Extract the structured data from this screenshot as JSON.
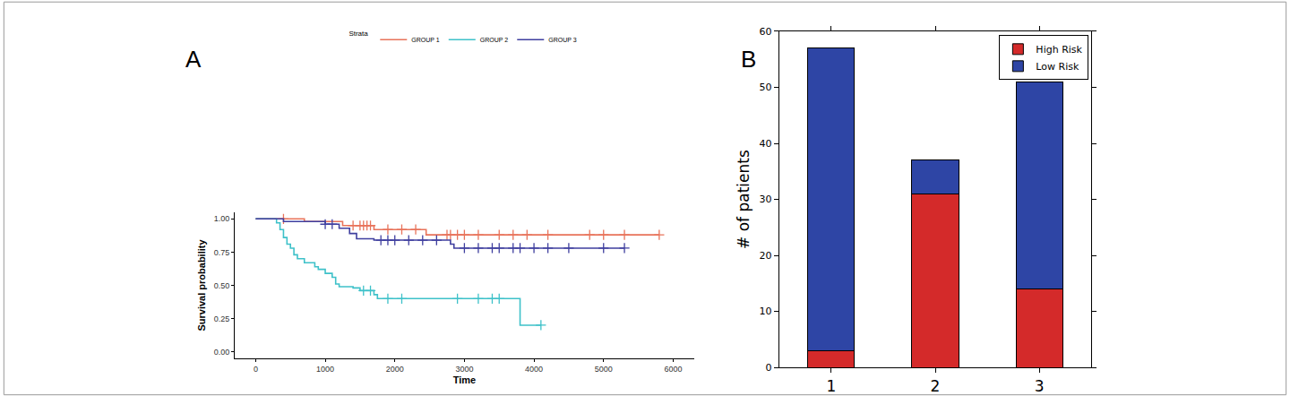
{
  "chart_data": [
    {
      "type": "line",
      "panel": "A",
      "x_label": "Time",
      "y_label": "Survival probability",
      "legend_title": "Strata",
      "legend": "top",
      "line_style": "step",
      "xlim": [
        -300,
        6300
      ],
      "xticks": [
        0,
        1000,
        2000,
        3000,
        4000,
        5000,
        6000
      ],
      "ylim": [
        -0.05,
        1.05
      ],
      "yticks": [
        {
          "value": 0,
          "label": "0.00"
        },
        {
          "value": 0.25,
          "label": "0.25"
        },
        {
          "value": 0.5,
          "label": "0.50"
        },
        {
          "value": 0.75,
          "label": "0.75"
        },
        {
          "value": 1,
          "label": "1.00"
        }
      ],
      "series": [
        {
          "name": "GROUP 1",
          "color": "#e8735a",
          "marker": "cross",
          "x": [
            0,
            700,
            1250,
            1700,
            2450,
            5800
          ],
          "values": [
            1,
            0.98,
            0.95,
            0.92,
            0.88,
            0.88
          ],
          "censored_x": [
            400,
            1400,
            1500,
            1550,
            1600,
            1650,
            1900,
            2100,
            2300,
            2750,
            2800,
            2900,
            3000,
            3200,
            3500,
            3700,
            3900,
            4200,
            4800,
            5000,
            5300,
            5800
          ],
          "censored_y": [
            1,
            0.95,
            0.95,
            0.95,
            0.95,
            0.95,
            0.92,
            0.92,
            0.92,
            0.88,
            0.88,
            0.88,
            0.88,
            0.88,
            0.88,
            0.88,
            0.88,
            0.88,
            0.88,
            0.88,
            0.88,
            0.88
          ]
        },
        {
          "name": "GROUP 2",
          "color": "#3ec1c9",
          "marker": "cross",
          "x": [
            0,
            300,
            350,
            400,
            450,
            500,
            550,
            600,
            700,
            850,
            900,
            1000,
            1100,
            1150,
            1200,
            1400,
            1500,
            1700,
            1750,
            3800,
            4100
          ],
          "values": [
            1,
            0.97,
            0.92,
            0.86,
            0.81,
            0.78,
            0.73,
            0.7,
            0.67,
            0.64,
            0.62,
            0.59,
            0.56,
            0.51,
            0.49,
            0.48,
            0.46,
            0.43,
            0.4,
            0.2,
            0.2
          ],
          "censored_x": [
            1550,
            1650,
            1900,
            2100,
            2900,
            3200,
            3400,
            3500,
            4100
          ],
          "censored_y": [
            0.46,
            0.46,
            0.4,
            0.4,
            0.4,
            0.4,
            0.4,
            0.4,
            0.2
          ]
        },
        {
          "name": "GROUP 3",
          "color": "#3f3f9f",
          "marker": "cross",
          "x": [
            0,
            400,
            1000,
            1200,
            1350,
            1450,
            1700,
            2800,
            2850,
            5300
          ],
          "values": [
            1,
            0.98,
            0.96,
            0.93,
            0.89,
            0.85,
            0.84,
            0.81,
            0.78,
            0.78
          ],
          "censored_x": [
            1000,
            1100,
            1800,
            1900,
            2000,
            2200,
            2400,
            2600,
            3000,
            3200,
            3400,
            3500,
            3700,
            3800,
            4000,
            4200,
            4500,
            5000,
            5300
          ],
          "censored_y": [
            0.96,
            0.96,
            0.84,
            0.84,
            0.84,
            0.84,
            0.84,
            0.84,
            0.78,
            0.78,
            0.78,
            0.78,
            0.78,
            0.78,
            0.78,
            0.78,
            0.78,
            0.78,
            0.78
          ]
        }
      ]
    },
    {
      "type": "bar",
      "panel": "B",
      "y_label": "# of patients",
      "stacked": true,
      "legend": "upper right",
      "categories": [
        "1",
        "2",
        "3"
      ],
      "ylim": [
        0,
        60
      ],
      "yticks": [
        0,
        10,
        20,
        30,
        40,
        50,
        60
      ],
      "series": [
        {
          "name": "High Risk",
          "color": "#d42a2a",
          "values": [
            3,
            31,
            14
          ]
        },
        {
          "name": "Low Risk",
          "color": "#2e45a5",
          "values": [
            54,
            6,
            37
          ]
        }
      ]
    }
  ]
}
